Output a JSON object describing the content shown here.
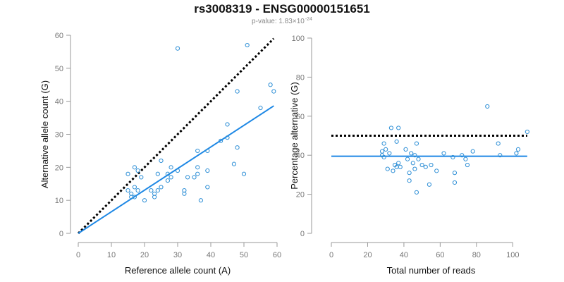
{
  "title": "rs3008319 - ENSG00000151651",
  "subtitle": {
    "prefix": "p-value: 1.83×10",
    "exponent": "-24"
  },
  "colors": {
    "points": "#2e8fd6",
    "fit": "#1e88e5",
    "reference": "#000000",
    "axes": "#999999",
    "tick_labels": "#777777"
  },
  "chart_data": [
    {
      "type": "scatter",
      "xlabel": "Reference allele count (A)",
      "ylabel": "Alternative allele count (G)",
      "xlim": [
        0,
        60
      ],
      "ylim": [
        0,
        60
      ],
      "xticks": [
        0,
        10,
        20,
        30,
        40,
        50,
        60
      ],
      "yticks": [
        0,
        10,
        20,
        30,
        40,
        50,
        60
      ],
      "grid": false,
      "points": [
        [
          15,
          18
        ],
        [
          15,
          13
        ],
        [
          16,
          12
        ],
        [
          16,
          11
        ],
        [
          17,
          20
        ],
        [
          17,
          14
        ],
        [
          17,
          11
        ],
        [
          18,
          19
        ],
        [
          18,
          13
        ],
        [
          19,
          17
        ],
        [
          20,
          10
        ],
        [
          22,
          13
        ],
        [
          23,
          12
        ],
        [
          23,
          11
        ],
        [
          24,
          18
        ],
        [
          24,
          13
        ],
        [
          25,
          22
        ],
        [
          25,
          14
        ],
        [
          27,
          18
        ],
        [
          27,
          16
        ],
        [
          28,
          20
        ],
        [
          28,
          17
        ],
        [
          30,
          56
        ],
        [
          30,
          19
        ],
        [
          32,
          13
        ],
        [
          32,
          12
        ],
        [
          33,
          17
        ],
        [
          35,
          17
        ],
        [
          36,
          25
        ],
        [
          36,
          20
        ],
        [
          36,
          18
        ],
        [
          37,
          10
        ],
        [
          39,
          25
        ],
        [
          39,
          19
        ],
        [
          39,
          14
        ],
        [
          43,
          28
        ],
        [
          45,
          33
        ],
        [
          45,
          29
        ],
        [
          47,
          21
        ],
        [
          48,
          43
        ],
        [
          48,
          26
        ],
        [
          50,
          18
        ],
        [
          51,
          57
        ],
        [
          55,
          38
        ],
        [
          58,
          45
        ],
        [
          59,
          43
        ]
      ],
      "fit_line": {
        "x": [
          0,
          59
        ],
        "y": [
          0,
          38.6
        ]
      },
      "reference_line": {
        "x": [
          0,
          59
        ],
        "y": [
          0,
          59
        ]
      }
    },
    {
      "type": "scatter",
      "xlabel": "Total number of reads",
      "ylabel": "Percentage alternative (G)",
      "xlim": [
        0,
        110
      ],
      "ylim": [
        0,
        100
      ],
      "xticks": [
        0,
        20,
        40,
        60,
        80,
        100
      ],
      "yticks": [
        0,
        20,
        40,
        60,
        80,
        100
      ],
      "grid": false,
      "points": [
        [
          28,
          40
        ],
        [
          28,
          42
        ],
        [
          29,
          46
        ],
        [
          29,
          39
        ],
        [
          30,
          43
        ],
        [
          31,
          33
        ],
        [
          32,
          41
        ],
        [
          33,
          54
        ],
        [
          34,
          32
        ],
        [
          35,
          35
        ],
        [
          36,
          47
        ],
        [
          36,
          34
        ],
        [
          37,
          54
        ],
        [
          37,
          36
        ],
        [
          38,
          34
        ],
        [
          41,
          43
        ],
        [
          42,
          38
        ],
        [
          43,
          27
        ],
        [
          43,
          31
        ],
        [
          44,
          41
        ],
        [
          45,
          36
        ],
        [
          46,
          40
        ],
        [
          46,
          33
        ],
        [
          47,
          46
        ],
        [
          47,
          21
        ],
        [
          48,
          38
        ],
        [
          50,
          35
        ],
        [
          52,
          34
        ],
        [
          54,
          25
        ],
        [
          55,
          35
        ],
        [
          58,
          32
        ],
        [
          62,
          41
        ],
        [
          67,
          39
        ],
        [
          68,
          31
        ],
        [
          68,
          26
        ],
        [
          72,
          40
        ],
        [
          74,
          38
        ],
        [
          75,
          35
        ],
        [
          78,
          42
        ],
        [
          86,
          65
        ],
        [
          92,
          46
        ],
        [
          93,
          40
        ],
        [
          102,
          41
        ],
        [
          103,
          43
        ],
        [
          108,
          52
        ]
      ],
      "fit_line": {
        "x": [
          0,
          108
        ],
        "y": [
          39.5,
          39.5
        ]
      },
      "reference_line": {
        "x": [
          0,
          108
        ],
        "y": [
          50,
          50
        ]
      }
    }
  ]
}
